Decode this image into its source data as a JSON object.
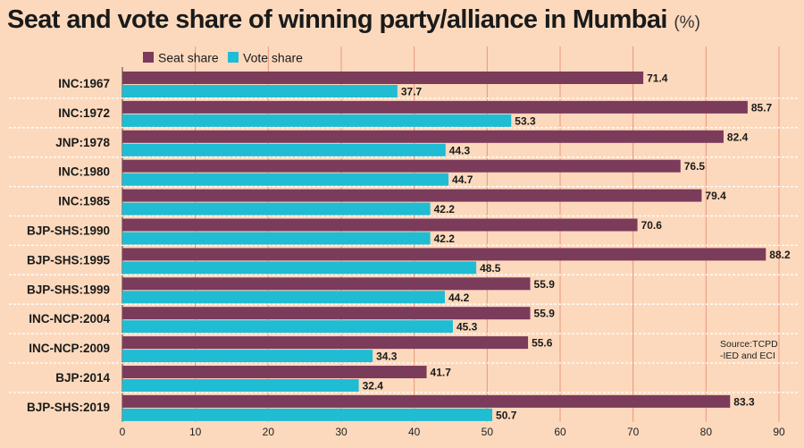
{
  "chart_data": {
    "type": "bar",
    "orientation": "horizontal",
    "title": "Seat and vote share of winning party/alliance in Mumbai",
    "title_unit": "(%)",
    "categories": [
      "INC:1967",
      "INC:1972",
      "JNP:1978",
      "INC:1980",
      "INC:1985",
      "BJP-SHS:1990",
      "BJP-SHS:1995",
      "BJP-SHS:1999",
      "INC-NCP:2004",
      "INC-NCP:2009",
      "BJP:2014",
      "BJP-SHS:2019"
    ],
    "series": [
      {
        "name": "Seat share",
        "color": "#7b3b5b",
        "values": [
          71.4,
          85.7,
          82.4,
          76.5,
          79.4,
          70.6,
          88.2,
          55.9,
          55.9,
          55.6,
          41.7,
          83.3
        ]
      },
      {
        "name": "Vote share",
        "color": "#20bcd4",
        "values": [
          37.7,
          53.3,
          44.3,
          44.7,
          42.2,
          42.2,
          48.5,
          44.2,
          45.3,
          34.3,
          32.4,
          50.7
        ]
      }
    ],
    "xlim": [
      0,
      90
    ],
    "xticks": [
      0,
      10,
      20,
      30,
      40,
      50,
      60,
      70,
      80,
      90
    ],
    "grid": true,
    "legend": "top-left",
    "source_lines": [
      "Source:TCPD",
      "-IED and ECI"
    ]
  }
}
